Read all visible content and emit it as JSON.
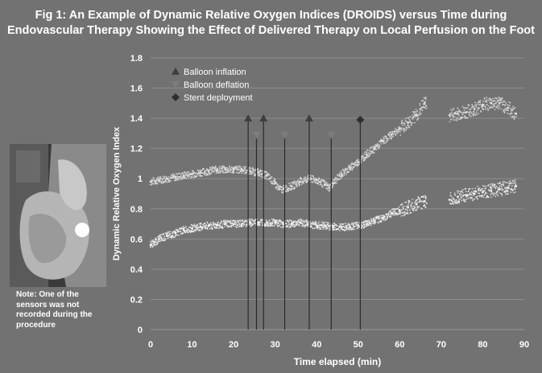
{
  "figure": {
    "title_line1": "Fig 1: An Example of Dynamic Relative Oxygen Indices (DROIDS) versus Time during",
    "title_line2": "Endovascular Therapy Showing the Effect of Delivered Therapy on Local Perfusion on the Foot",
    "photo_note": "Note: One of the sensors was not recorded during the procedure"
  },
  "colors": {
    "background": "#727272",
    "text": "#ffffff",
    "gridline": "#8c8c8c",
    "upper_trace": "#e0e0e0",
    "lower_trace": "#f2f2f2",
    "balloon_inflation_marker": "#3e3e3e",
    "balloon_deflation_marker": "#7d7d7d",
    "stent_deployment_marker": "#2f2f2f",
    "event_line": "#2a2a2a"
  },
  "chart_data": {
    "type": "scatter",
    "title": "Fig 1: An Example of Dynamic Relative Oxygen Indices (DROIDS) versus Time during Endovascular Therapy Showing the Effect of Delivered Therapy on Local Perfusion on the Foot",
    "xlabel": "Time elapsed (min)",
    "ylabel": "Dynamic Relative Oxygen Index",
    "xlim": [
      0,
      90
    ],
    "ylim": [
      0,
      1.8
    ],
    "x_ticks": [
      "0",
      "10",
      "20",
      "30",
      "40",
      "50",
      "60",
      "70",
      "80",
      "90"
    ],
    "y_ticks": [
      "0",
      "0.2",
      "0.4",
      "0.6",
      "0.8",
      "1",
      "1.2",
      "1.4",
      "1.6",
      "1.8"
    ],
    "grid": "horizontal",
    "legend_position": "top-left",
    "legend": [
      {
        "label": "Balloon inflation",
        "marker": "triangle-up"
      },
      {
        "label": "Balloon deflation",
        "marker": "triangle-down"
      },
      {
        "label": "Stent deployment",
        "marker": "diamond"
      }
    ],
    "series": [
      {
        "x": [
          0,
          2,
          4,
          6,
          8,
          10,
          12,
          14,
          16,
          18,
          20,
          22,
          24,
          26,
          28,
          30,
          31,
          32,
          34,
          36,
          38,
          40,
          42,
          43,
          44,
          46,
          48,
          50,
          52,
          54,
          56,
          58,
          60,
          62,
          64,
          66,
          72,
          74,
          76,
          78,
          80,
          82,
          84,
          86,
          88
        ],
        "y": [
          0.98,
          0.99,
          1.0,
          1.01,
          1.02,
          1.03,
          1.04,
          1.05,
          1.06,
          1.06,
          1.06,
          1.06,
          1.05,
          1.04,
          1.02,
          0.97,
          0.93,
          0.93,
          0.95,
          0.98,
          1.0,
          0.99,
          0.96,
          0.94,
          0.97,
          1.03,
          1.07,
          1.11,
          1.16,
          1.2,
          1.25,
          1.29,
          1.33,
          1.37,
          1.42,
          1.5,
          1.42,
          1.43,
          1.44,
          1.46,
          1.49,
          1.5,
          1.5,
          1.47,
          1.43
        ]
      },
      {
        "x": [
          0,
          1,
          2,
          4,
          6,
          8,
          10,
          12,
          14,
          16,
          18,
          20,
          22,
          24,
          26,
          28,
          30,
          32,
          34,
          36,
          38,
          40,
          42,
          44,
          46,
          48,
          50,
          52,
          54,
          56,
          58,
          60,
          62,
          64,
          66,
          72,
          74,
          76,
          78,
          80,
          82,
          84,
          86,
          88
        ],
        "y": [
          0.56,
          0.58,
          0.6,
          0.62,
          0.64,
          0.66,
          0.67,
          0.68,
          0.69,
          0.69,
          0.7,
          0.7,
          0.7,
          0.71,
          0.71,
          0.71,
          0.71,
          0.7,
          0.7,
          0.71,
          0.7,
          0.69,
          0.69,
          0.68,
          0.68,
          0.68,
          0.69,
          0.7,
          0.72,
          0.74,
          0.77,
          0.79,
          0.81,
          0.83,
          0.85,
          0.86,
          0.88,
          0.89,
          0.9,
          0.91,
          0.92,
          0.93,
          0.94,
          0.95
        ]
      }
    ],
    "events": [
      {
        "type": "Balloon inflation",
        "x": 23.5,
        "y": 1.4
      },
      {
        "type": "Balloon deflation",
        "x": 25.5,
        "y": 1.29
      },
      {
        "type": "Balloon inflation",
        "x": 27.2,
        "y": 1.4
      },
      {
        "type": "Balloon deflation",
        "x": 32.3,
        "y": 1.29
      },
      {
        "type": "Balloon inflation",
        "x": 38.2,
        "y": 1.4
      },
      {
        "type": "Balloon deflation",
        "x": 43.5,
        "y": 1.29
      },
      {
        "type": "Stent deployment",
        "x": 50.5,
        "y": 1.39
      }
    ]
  }
}
